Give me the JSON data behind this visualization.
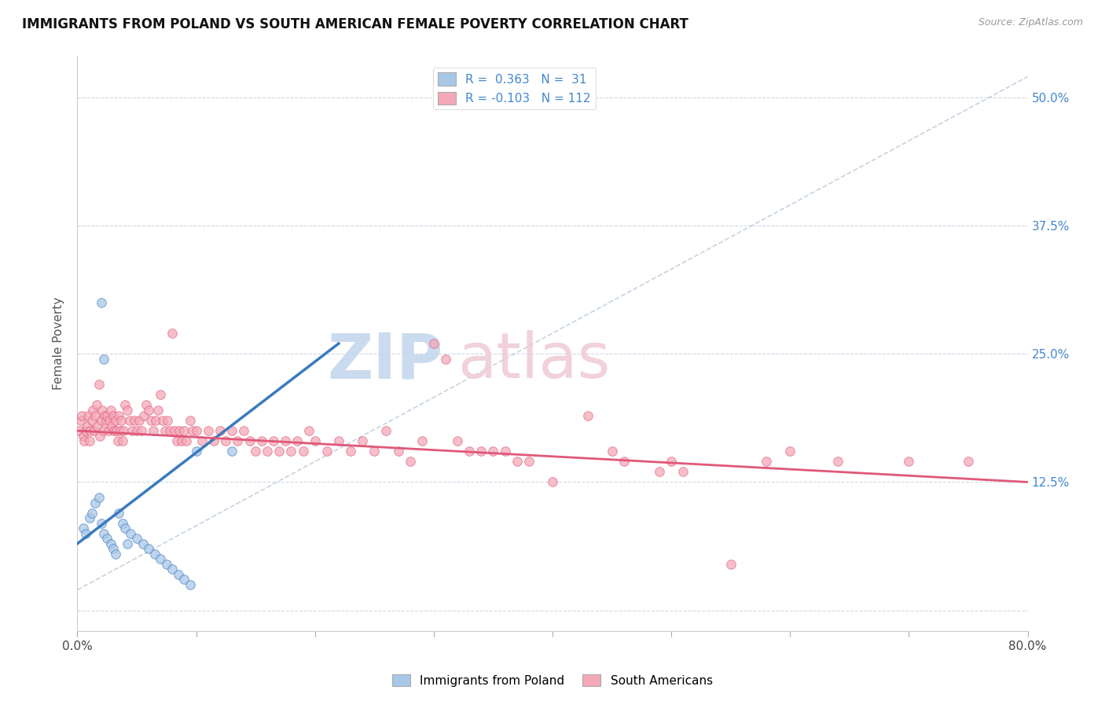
{
  "title": "IMMIGRANTS FROM POLAND VS SOUTH AMERICAN FEMALE POVERTY CORRELATION CHART",
  "source": "Source: ZipAtlas.com",
  "ylabel": "Female Poverty",
  "xlim": [
    0.0,
    0.8
  ],
  "ylim": [
    -0.02,
    0.54
  ],
  "ytick_positions": [
    0.0,
    0.125,
    0.25,
    0.375,
    0.5
  ],
  "ytick_labels": [
    "",
    "12.5%",
    "25.0%",
    "37.5%",
    "50.0%"
  ],
  "color_blue": "#a8c8e8",
  "color_pink": "#f4a8b8",
  "line_blue": "#3a7abf",
  "line_pink": "#e05878",
  "line_gray": "#b8c4d0",
  "poland_points": [
    [
      0.005,
      0.08
    ],
    [
      0.007,
      0.075
    ],
    [
      0.01,
      0.09
    ],
    [
      0.012,
      0.095
    ],
    [
      0.015,
      0.105
    ],
    [
      0.018,
      0.11
    ],
    [
      0.02,
      0.085
    ],
    [
      0.022,
      0.075
    ],
    [
      0.025,
      0.07
    ],
    [
      0.028,
      0.065
    ],
    [
      0.03,
      0.06
    ],
    [
      0.032,
      0.055
    ],
    [
      0.035,
      0.095
    ],
    [
      0.038,
      0.085
    ],
    [
      0.04,
      0.08
    ],
    [
      0.042,
      0.065
    ],
    [
      0.045,
      0.075
    ],
    [
      0.05,
      0.07
    ],
    [
      0.055,
      0.065
    ],
    [
      0.06,
      0.06
    ],
    [
      0.065,
      0.055
    ],
    [
      0.07,
      0.05
    ],
    [
      0.075,
      0.045
    ],
    [
      0.08,
      0.04
    ],
    [
      0.085,
      0.035
    ],
    [
      0.09,
      0.03
    ],
    [
      0.095,
      0.025
    ],
    [
      0.02,
      0.3
    ],
    [
      0.022,
      0.245
    ],
    [
      0.1,
      0.155
    ],
    [
      0.13,
      0.155
    ]
  ],
  "southam_points": [
    [
      0.002,
      0.175
    ],
    [
      0.003,
      0.185
    ],
    [
      0.004,
      0.19
    ],
    [
      0.005,
      0.17
    ],
    [
      0.006,
      0.165
    ],
    [
      0.007,
      0.175
    ],
    [
      0.008,
      0.18
    ],
    [
      0.009,
      0.19
    ],
    [
      0.01,
      0.165
    ],
    [
      0.011,
      0.175
    ],
    [
      0.012,
      0.185
    ],
    [
      0.013,
      0.195
    ],
    [
      0.014,
      0.175
    ],
    [
      0.015,
      0.19
    ],
    [
      0.016,
      0.2
    ],
    [
      0.017,
      0.18
    ],
    [
      0.018,
      0.22
    ],
    [
      0.019,
      0.17
    ],
    [
      0.02,
      0.185
    ],
    [
      0.021,
      0.195
    ],
    [
      0.022,
      0.175
    ],
    [
      0.023,
      0.19
    ],
    [
      0.024,
      0.185
    ],
    [
      0.025,
      0.19
    ],
    [
      0.026,
      0.175
    ],
    [
      0.027,
      0.185
    ],
    [
      0.028,
      0.195
    ],
    [
      0.029,
      0.18
    ],
    [
      0.03,
      0.19
    ],
    [
      0.031,
      0.175
    ],
    [
      0.032,
      0.185
    ],
    [
      0.033,
      0.175
    ],
    [
      0.034,
      0.165
    ],
    [
      0.035,
      0.19
    ],
    [
      0.036,
      0.175
    ],
    [
      0.037,
      0.185
    ],
    [
      0.038,
      0.165
    ],
    [
      0.039,
      0.175
    ],
    [
      0.04,
      0.2
    ],
    [
      0.042,
      0.195
    ],
    [
      0.044,
      0.185
    ],
    [
      0.046,
      0.175
    ],
    [
      0.048,
      0.185
    ],
    [
      0.05,
      0.175
    ],
    [
      0.052,
      0.185
    ],
    [
      0.054,
      0.175
    ],
    [
      0.056,
      0.19
    ],
    [
      0.058,
      0.2
    ],
    [
      0.06,
      0.195
    ],
    [
      0.062,
      0.185
    ],
    [
      0.064,
      0.175
    ],
    [
      0.066,
      0.185
    ],
    [
      0.068,
      0.195
    ],
    [
      0.07,
      0.21
    ],
    [
      0.072,
      0.185
    ],
    [
      0.074,
      0.175
    ],
    [
      0.076,
      0.185
    ],
    [
      0.078,
      0.175
    ],
    [
      0.08,
      0.27
    ],
    [
      0.082,
      0.175
    ],
    [
      0.084,
      0.165
    ],
    [
      0.086,
      0.175
    ],
    [
      0.088,
      0.165
    ],
    [
      0.09,
      0.175
    ],
    [
      0.092,
      0.165
    ],
    [
      0.095,
      0.185
    ],
    [
      0.097,
      0.175
    ],
    [
      0.1,
      0.175
    ],
    [
      0.105,
      0.165
    ],
    [
      0.11,
      0.175
    ],
    [
      0.115,
      0.165
    ],
    [
      0.12,
      0.175
    ],
    [
      0.125,
      0.165
    ],
    [
      0.13,
      0.175
    ],
    [
      0.135,
      0.165
    ],
    [
      0.14,
      0.175
    ],
    [
      0.145,
      0.165
    ],
    [
      0.15,
      0.155
    ],
    [
      0.155,
      0.165
    ],
    [
      0.16,
      0.155
    ],
    [
      0.165,
      0.165
    ],
    [
      0.17,
      0.155
    ],
    [
      0.175,
      0.165
    ],
    [
      0.18,
      0.155
    ],
    [
      0.185,
      0.165
    ],
    [
      0.19,
      0.155
    ],
    [
      0.195,
      0.175
    ],
    [
      0.2,
      0.165
    ],
    [
      0.21,
      0.155
    ],
    [
      0.22,
      0.165
    ],
    [
      0.23,
      0.155
    ],
    [
      0.24,
      0.165
    ],
    [
      0.25,
      0.155
    ],
    [
      0.26,
      0.175
    ],
    [
      0.27,
      0.155
    ],
    [
      0.28,
      0.145
    ],
    [
      0.29,
      0.165
    ],
    [
      0.3,
      0.26
    ],
    [
      0.31,
      0.245
    ],
    [
      0.32,
      0.165
    ],
    [
      0.33,
      0.155
    ],
    [
      0.34,
      0.155
    ],
    [
      0.35,
      0.155
    ],
    [
      0.36,
      0.155
    ],
    [
      0.37,
      0.145
    ],
    [
      0.38,
      0.145
    ],
    [
      0.4,
      0.125
    ],
    [
      0.43,
      0.19
    ],
    [
      0.45,
      0.155
    ],
    [
      0.46,
      0.145
    ],
    [
      0.49,
      0.135
    ],
    [
      0.5,
      0.145
    ],
    [
      0.51,
      0.135
    ],
    [
      0.55,
      0.045
    ],
    [
      0.58,
      0.145
    ],
    [
      0.6,
      0.155
    ],
    [
      0.64,
      0.145
    ],
    [
      0.7,
      0.145
    ],
    [
      0.75,
      0.145
    ]
  ],
  "blue_line_x": [
    0.0,
    0.22
  ],
  "blue_line_y": [
    0.065,
    0.26
  ],
  "pink_line_x": [
    0.0,
    0.8
  ],
  "pink_line_y": [
    0.175,
    0.125
  ]
}
